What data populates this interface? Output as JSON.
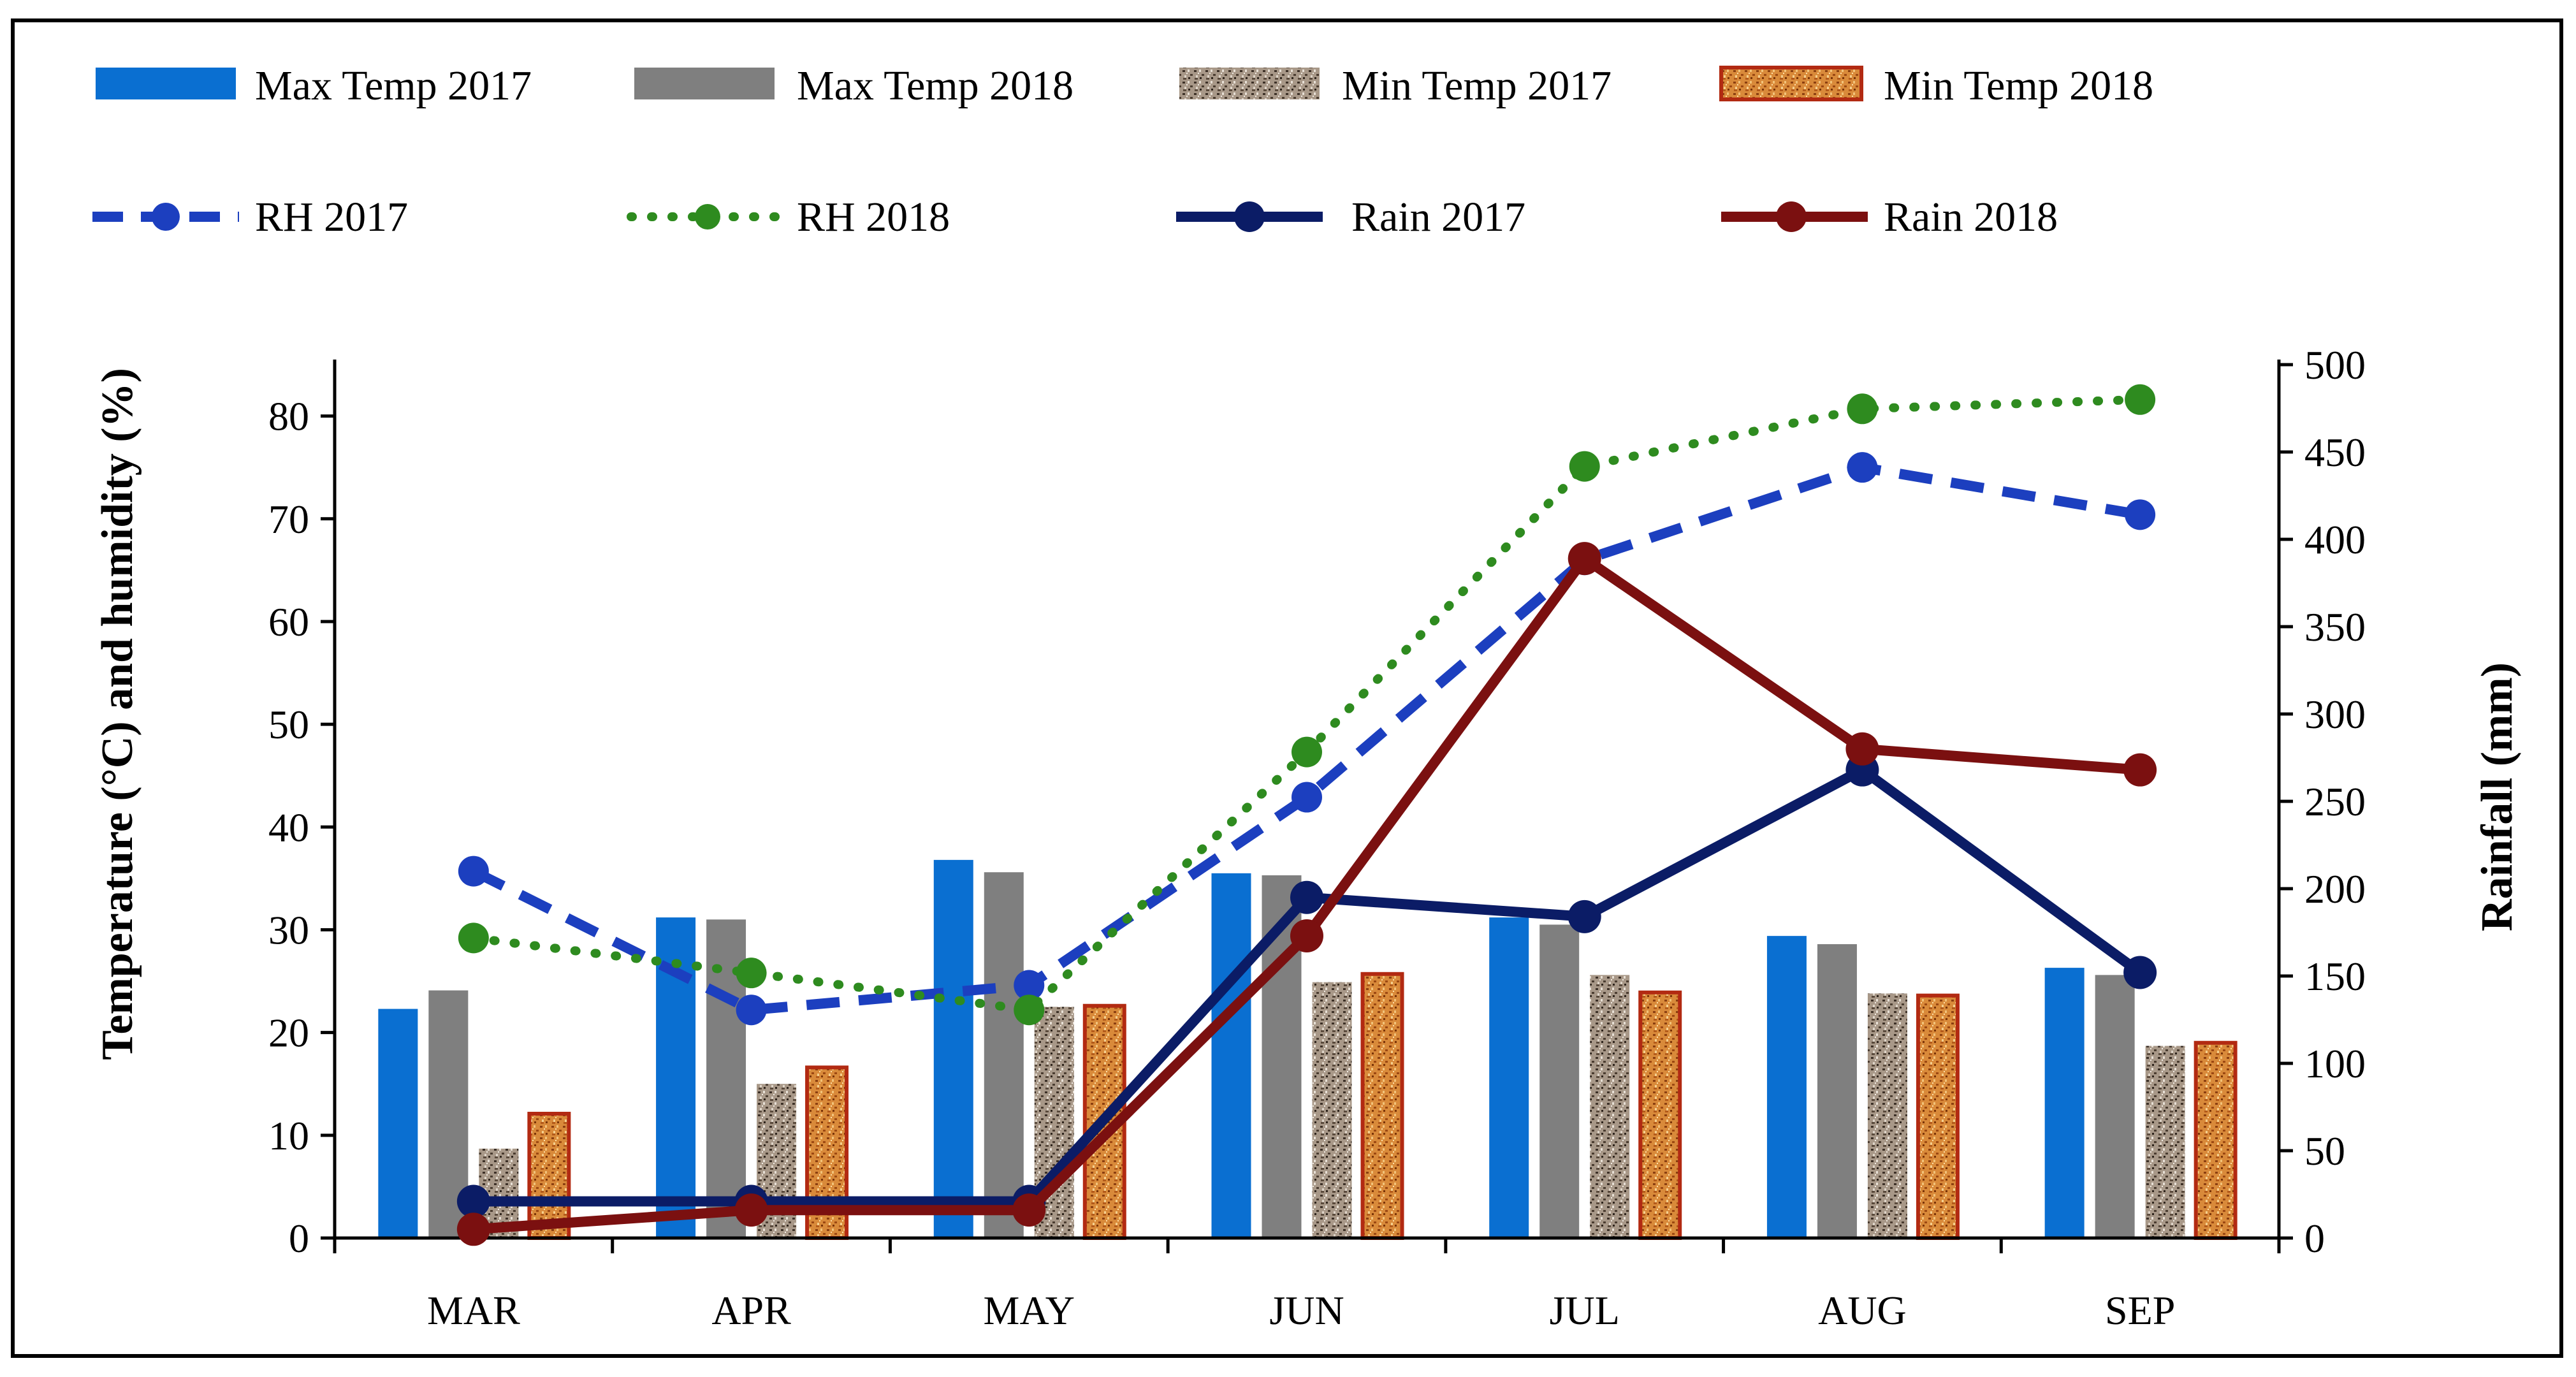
{
  "chart_data": {
    "type": "bar",
    "categories": [
      "MAR",
      "APR",
      "MAY",
      "JUN",
      "JUL",
      "AUG",
      "SEP"
    ],
    "bar_series": [
      {
        "name": "Max Temp 2017",
        "values": [
          22.3,
          31.2,
          36.8,
          35.5,
          31.2,
          29.4,
          26.3
        ],
        "color": "#0A6FD1",
        "pattern": "solid"
      },
      {
        "name": "Max Temp 2018",
        "values": [
          24.1,
          31.0,
          35.6,
          35.3,
          30.5,
          28.6,
          25.6
        ],
        "color": "#7F7F7F",
        "pattern": "solid"
      },
      {
        "name": "Min Temp 2017",
        "values": [
          8.7,
          15.0,
          22.5,
          24.9,
          25.6,
          23.8,
          18.7
        ],
        "color": "#8C7B6B",
        "pattern": "speckle-gray"
      },
      {
        "name": "Min Temp 2018",
        "values": [
          12.1,
          16.6,
          22.6,
          25.7,
          23.9,
          23.6,
          19.0
        ],
        "color": "#C0392B",
        "pattern": "speckle-orange"
      }
    ],
    "line_series": [
      {
        "name": "RH 2017",
        "axis": "left",
        "values": [
          35.7,
          22.2,
          24.6,
          42.9,
          66.0,
          75.0,
          70.4
        ],
        "color": "#1C3FBF",
        "style": "dashed"
      },
      {
        "name": "RH 2018",
        "axis": "left",
        "values": [
          29.2,
          25.8,
          22.2,
          47.3,
          75.1,
          80.7,
          81.6
        ],
        "color": "#2E8B1F",
        "style": "dotted"
      },
      {
        "name": "Rain 2017",
        "axis": "right",
        "values": [
          21,
          21,
          21,
          195,
          184,
          268,
          152
        ],
        "color": "#0B1C66",
        "style": "solid"
      },
      {
        "name": "Rain 2018",
        "axis": "right",
        "values": [
          5,
          16,
          16,
          173,
          389,
          280,
          268
        ],
        "color": "#7B1010",
        "style": "solid"
      }
    ],
    "ylabel": "Temperature (°C) and humidity (%)",
    "y2label": "Rainfall (mm)",
    "ylim": [
      0,
      85
    ],
    "y2lim": [
      0,
      500
    ],
    "yticks": [
      "0",
      "10",
      "20",
      "30",
      "40",
      "50",
      "60",
      "70",
      "80"
    ],
    "y2ticks": [
      "0",
      "50",
      "100",
      "150",
      "200",
      "250",
      "300",
      "350",
      "400",
      "450",
      "500"
    ],
    "legend_position": "top"
  }
}
